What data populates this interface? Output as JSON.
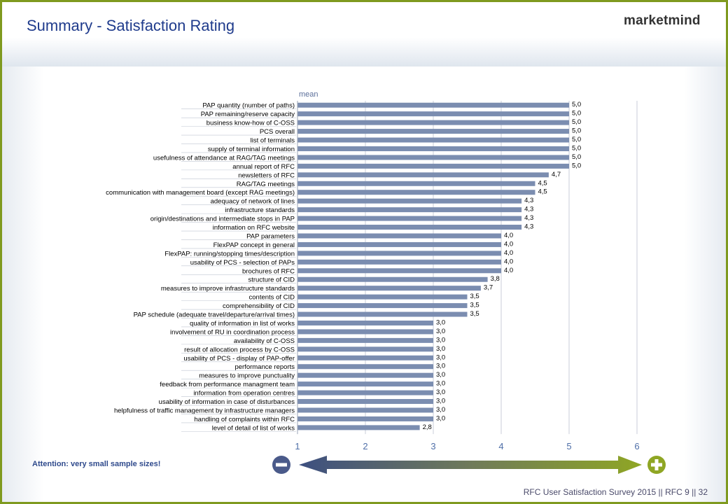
{
  "header": {
    "title": "Summary - Satisfaction Rating",
    "brand": "marketmind"
  },
  "notes": {
    "attention": "Attention:  very small sample sizes!"
  },
  "footer": {
    "text": "RFC User Satisfaction Survey 2015 || RFC 9 || 32"
  },
  "scale": {
    "minus_icon": "minus-circle-icon",
    "plus_icon": "plus-circle-icon"
  },
  "colors": {
    "frame": "#7f9a1f",
    "bar": "#7b8db0",
    "title": "#1f3b8c",
    "arrow_left": "#3d4f80",
    "arrow_right": "#8fa624"
  },
  "chart_data": {
    "type": "bar",
    "orientation": "horizontal",
    "series_label": "mean",
    "xlim": [
      1,
      6
    ],
    "xticks": [
      "1",
      "2",
      "3",
      "4",
      "5",
      "6"
    ],
    "grid": true,
    "categories": [
      "PAP quantity (number of paths)",
      "PAP remaining/reserve capacity",
      "business know-how of C-OSS",
      "PCS overall",
      "list of terminals",
      "supply of terminal information",
      "usefulness of attendance at RAG/TAG meetings",
      "annual report of RFC",
      "newsletters of RFC",
      "RAG/TAG meetings",
      "communication with management board (except RAG meetings)",
      "adequacy of network of lines",
      "infrastructure standards",
      "origin/destinations and intermediate stops in PAP",
      "information on RFC website",
      "PAP parameters",
      "FlexPAP concept in general",
      "FlexPAP: running/stopping times/description",
      "usability of PCS - selection of PAPs",
      "brochures of RFC",
      "structure of CID",
      "measures to improve infrastructure standards",
      "contents of CID",
      "comprehensibility of CID",
      "PAP schedule (adequate travel/departure/arrival times)",
      "quality of information in list of works",
      "involvement of RU in coordination process",
      "availability of C-OSS",
      "result of allocation process by C-OSS",
      "usability of PCS - display of PAP-offer",
      "performance reports",
      "measures to improve punctuality",
      "feedback from performance managment team",
      "information from operation centres",
      "usability of information in case of disturbances",
      "helpfulness of traffic management by infrastructure managers",
      "handling of complaints within RFC",
      "level of detail of list of works"
    ],
    "values": [
      5.0,
      5.0,
      5.0,
      5.0,
      5.0,
      5.0,
      5.0,
      5.0,
      4.7,
      4.5,
      4.5,
      4.3,
      4.3,
      4.3,
      4.3,
      4.0,
      4.0,
      4.0,
      4.0,
      4.0,
      3.8,
      3.7,
      3.5,
      3.5,
      3.5,
      3.0,
      3.0,
      3.0,
      3.0,
      3.0,
      3.0,
      3.0,
      3.0,
      3.0,
      3.0,
      3.0,
      3.0,
      2.8
    ],
    "value_labels": [
      "5,0",
      "5,0",
      "5,0",
      "5,0",
      "5,0",
      "5,0",
      "5,0",
      "5,0",
      "4,7",
      "4,5",
      "4,5",
      "4,3",
      "4,3",
      "4,3",
      "4,3",
      "4,0",
      "4,0",
      "4,0",
      "4,0",
      "4,0",
      "3,8",
      "3,7",
      "3,5",
      "3,5",
      "3,5",
      "3,0",
      "3,0",
      "3,0",
      "3,0",
      "3,0",
      "3,0",
      "3,0",
      "3,0",
      "3,0",
      "3,0",
      "3,0",
      "3,0",
      "2,8"
    ]
  }
}
